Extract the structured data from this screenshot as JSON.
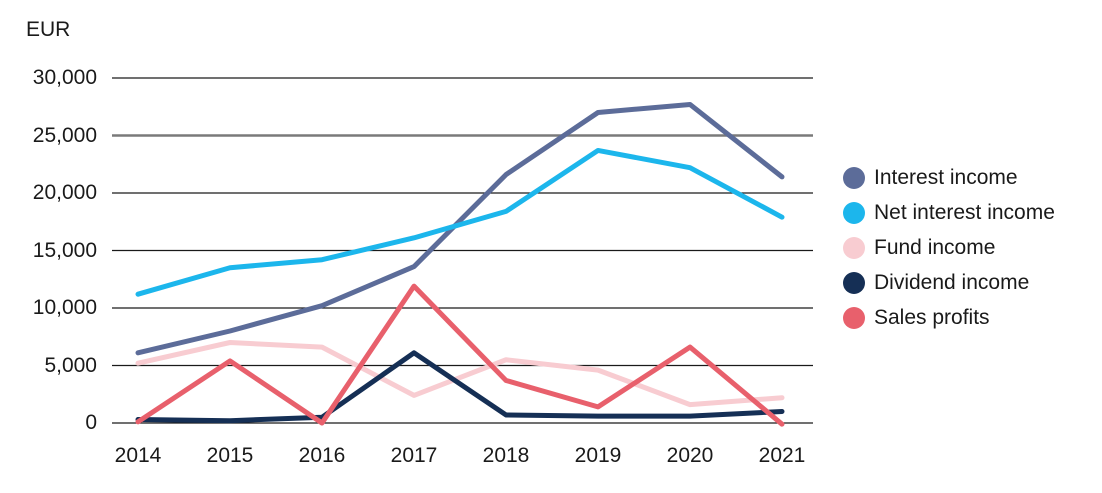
{
  "chart_data": {
    "type": "line",
    "title": "",
    "unit": "EUR",
    "categories": [
      "2014",
      "2015",
      "2016",
      "2017",
      "2018",
      "2019",
      "2020",
      "2021"
    ],
    "ylim": [
      0,
      30000
    ],
    "grid": "horizontal",
    "legend_position": "right",
    "yticks": [
      {
        "value": 30000,
        "label": "30,000"
      },
      {
        "value": 25000,
        "label": "25,000"
      },
      {
        "value": 20000,
        "label": "20,000"
      },
      {
        "value": 15000,
        "label": "15,000"
      },
      {
        "value": 10000,
        "label": "10,000"
      },
      {
        "value": 5000,
        "label": "5,000"
      },
      {
        "value": 0,
        "label": "0"
      }
    ],
    "series": [
      {
        "name": "Interest income",
        "color": "#5c6c99",
        "values": [
          6100,
          8000,
          10200,
          13600,
          21600,
          27000,
          27700,
          21400
        ]
      },
      {
        "name": "Net interest income",
        "color": "#1cb6ec",
        "values": [
          11200,
          13500,
          14200,
          16100,
          18400,
          23700,
          22200,
          17900
        ]
      },
      {
        "name": "Fund income",
        "color": "#f8ccd1",
        "values": [
          5200,
          7000,
          6600,
          2400,
          5500,
          4600,
          1600,
          2200
        ]
      },
      {
        "name": "Dividend income",
        "color": "#152f55",
        "values": [
          300,
          200,
          500,
          6100,
          700,
          600,
          600,
          1000
        ]
      },
      {
        "name": "Sales profits",
        "color": "#e8606c",
        "values": [
          100,
          5400,
          0,
          11900,
          3700,
          1400,
          6600,
          -100
        ]
      }
    ],
    "styles": {
      "background": "#ffffff",
      "text_color": "#1a1a1a",
      "gridline_color": "#1a1a1a",
      "gridline_emphasis_value": 25000,
      "gridline_emphasis_color": "#7a7a7a"
    }
  }
}
